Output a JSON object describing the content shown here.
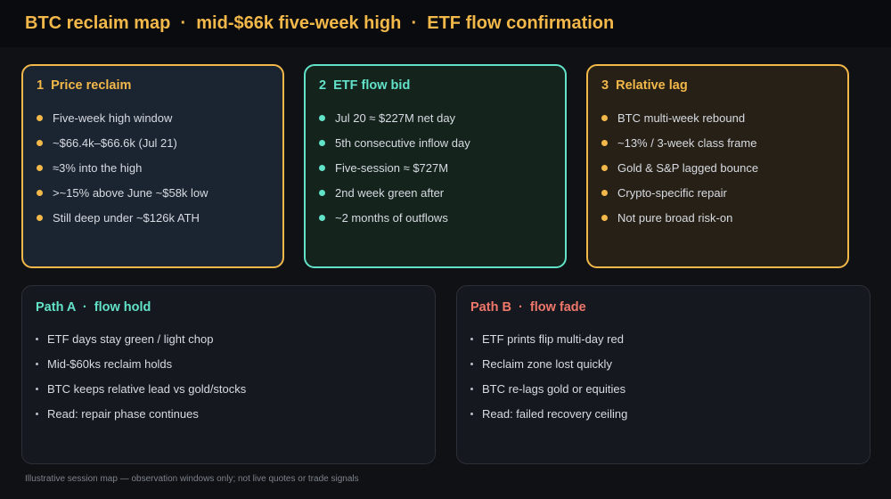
{
  "header": {
    "title": "BTC reclaim map  ·  mid-$66k five-week high  ·  ETF flow confirmation"
  },
  "cards": [
    {
      "title": "1  Price reclaim",
      "accent": "#f3b84a",
      "items": [
        "Five-week high window",
        "~$66.4k–$66.6k (Jul 21)",
        "≈3% into the high",
        ">~15% above June ~$58k low",
        "Still deep under ~$126k ATH"
      ]
    },
    {
      "title": "2  ETF flow bid",
      "accent": "#62e3c9",
      "items": [
        "Jul 20 ≈ $227M net day",
        "5th consecutive inflow day",
        "Five-session ≈ $727M",
        "2nd week green after",
        "~2 months of outflows"
      ]
    },
    {
      "title": "3  Relative lag",
      "accent": "#f3b84a",
      "items": [
        "BTC multi-week rebound",
        "~13% / 3-week class frame",
        "Gold & S&P lagged bounce",
        "Crypto-specific repair",
        "Not pure broad risk-on"
      ]
    }
  ],
  "paths": [
    {
      "title": "Path A  ·  flow hold",
      "accent": "#62e3c9",
      "items": [
        "ETF days stay green / light chop",
        "Mid-$60ks reclaim holds",
        "BTC keeps relative lead vs gold/stocks",
        "Read: repair phase continues"
      ]
    },
    {
      "title": "Path B  ·  flow fade",
      "accent": "#f0776b",
      "items": [
        "ETF prints flip multi-day red",
        "Reclaim zone lost quickly",
        "BTC re-lags gold or equities",
        "Read: failed recovery ceiling"
      ]
    }
  ],
  "footer": "Illustrative session map — observation windows only; not live quotes or trade signals"
}
